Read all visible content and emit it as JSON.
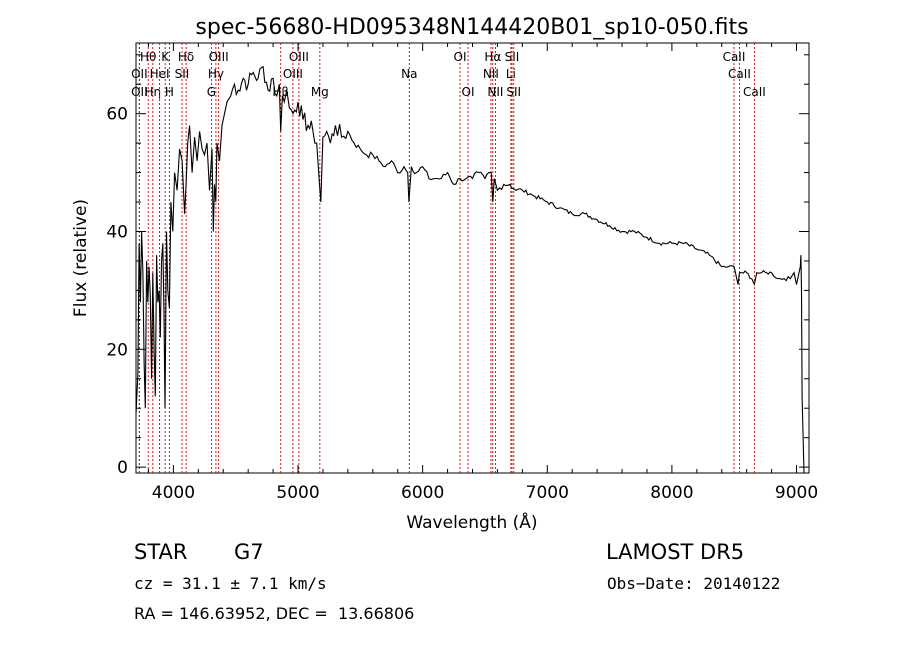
{
  "chart_data": {
    "type": "line",
    "title": "spec-56680-HD095348N144420B01_sp10-050.fits",
    "xlabel": "Wavelength (Å)",
    "ylabel": "Flux (relative)",
    "xlim": [
      3700,
      9100
    ],
    "ylim": [
      -1,
      72
    ],
    "xticks": [
      4000,
      5000,
      6000,
      7000,
      8000,
      9000
    ],
    "yticks": [
      0,
      20,
      40,
      60
    ],
    "grid": false,
    "series": [
      {
        "color": "#000000",
        "x": [
          3700,
          3715,
          3725,
          3735,
          3745,
          3755,
          3765,
          3775,
          3785,
          3795,
          3805,
          3815,
          3825,
          3835,
          3845,
          3855,
          3865,
          3875,
          3885,
          3895,
          3905,
          3915,
          3925,
          3933,
          3945,
          3955,
          3968,
          3980,
          3995,
          4010,
          4030,
          4050,
          4070,
          4090,
          4102,
          4115,
          4130,
          4150,
          4170,
          4190,
          4210,
          4230,
          4250,
          4270,
          4290,
          4310,
          4320,
          4330,
          4340,
          4350,
          4370,
          4390,
          4410,
          4430,
          4460,
          4490,
          4520,
          4560,
          4600,
          4640,
          4680,
          4720,
          4760,
          4800,
          4830,
          4850,
          4861,
          4875,
          4890,
          4910,
          4930,
          4960,
          5000,
          5040,
          5080,
          5120,
          5150,
          5172,
          5183,
          5200,
          5230,
          5260,
          5300,
          5350,
          5400,
          5450,
          5500,
          5550,
          5600,
          5650,
          5700,
          5750,
          5800,
          5850,
          5880,
          5890,
          5896,
          5910,
          5950,
          6000,
          6050,
          6100,
          6150,
          6200,
          6250,
          6300,
          6350,
          6400,
          6450,
          6500,
          6530,
          6550,
          6563,
          6575,
          6600,
          6650,
          6700,
          6750,
          6800,
          6900,
          7000,
          7100,
          7200,
          7300,
          7400,
          7500,
          7600,
          7700,
          7800,
          7900,
          8000,
          8100,
          8200,
          8300,
          8400,
          8450,
          8500,
          8530,
          8542,
          8560,
          8600,
          8640,
          8662,
          8680,
          8720,
          8760,
          8800,
          8850,
          8900,
          8950,
          8980,
          9000,
          9020,
          9030,
          9035,
          9040,
          9045,
          9060
        ],
        "y": [
          9,
          16,
          38,
          28,
          40,
          33,
          18,
          10,
          35,
          28,
          34,
          29,
          15,
          33,
          20,
          12,
          36,
          28,
          30,
          22,
          35,
          38,
          26,
          10,
          40,
          30,
          27,
          45,
          40,
          50,
          47,
          54,
          52,
          43,
          48,
          55,
          58,
          50,
          56,
          52,
          57,
          54,
          53,
          55,
          47,
          54,
          40,
          48,
          45,
          55,
          52,
          58,
          60,
          62,
          63,
          65,
          64,
          66,
          65,
          67,
          66,
          68,
          64,
          66,
          63,
          65,
          57,
          63,
          62,
          64,
          61,
          60,
          62,
          59,
          58,
          57,
          55,
          48,
          45,
          56,
          57,
          55,
          58,
          56,
          57,
          55,
          54,
          53,
          53,
          52,
          51,
          52,
          50,
          51,
          50,
          45,
          47,
          51,
          50,
          51,
          49,
          49,
          49,
          50,
          48,
          49,
          49,
          49,
          50,
          49,
          50,
          50,
          45,
          49,
          47,
          48,
          48,
          47,
          47,
          46,
          45,
          44,
          43,
          43,
          42,
          41,
          40,
          40,
          39,
          38,
          38,
          38,
          37,
          36,
          34,
          34,
          34,
          31,
          33,
          33,
          33,
          32,
          31,
          33,
          33,
          33,
          33,
          32,
          32,
          32,
          33,
          31,
          33,
          34,
          36,
          30,
          12,
          -1
        ]
      }
    ],
    "line_markers": [
      {
        "label": "OII",
        "x": 3727,
        "row": 2
      },
      {
        "label": "Hθ",
        "x": 3798,
        "row": 1
      },
      {
        "label": "OII",
        "x": 3727,
        "row": 3
      },
      {
        "label": "Hη",
        "x": 3835,
        "row": 3
      },
      {
        "label": "HeI",
        "x": 3889,
        "row": 2
      },
      {
        "label": "K",
        "x": 3934,
        "row": 1
      },
      {
        "label": "H",
        "x": 3968,
        "row": 3
      },
      {
        "label": "SII",
        "x": 4069,
        "row": 2
      },
      {
        "label": "Hδ",
        "x": 4102,
        "row": 1
      },
      {
        "label": "G",
        "x": 4305,
        "row": 3
      },
      {
        "label": "Hγ",
        "x": 4341,
        "row": 2
      },
      {
        "label": "OIII",
        "x": 4363,
        "row": 1
      },
      {
        "label": "Hβ",
        "x": 4861,
        "row": 3
      },
      {
        "label": "OIII",
        "x": 5007,
        "row": 1
      },
      {
        "label": "OIII",
        "x": 4959,
        "row": 2
      },
      {
        "label": "Mg",
        "x": 5175,
        "row": 3
      },
      {
        "label": "Na",
        "x": 5893,
        "row": 2
      },
      {
        "label": "OI",
        "x": 6300,
        "row": 1
      },
      {
        "label": "OI",
        "x": 6364,
        "row": 3
      },
      {
        "label": "Hα",
        "x": 6563,
        "row": 1
      },
      {
        "label": "NII",
        "x": 6548,
        "row": 2
      },
      {
        "label": "NII",
        "x": 6584,
        "row": 3
      },
      {
        "label": "SII",
        "x": 6717,
        "row": 1
      },
      {
        "label": "Li",
        "x": 6708,
        "row": 2
      },
      {
        "label": "SII",
        "x": 6731,
        "row": 3
      },
      {
        "label": "CaII",
        "x": 8498,
        "row": 1
      },
      {
        "label": "CaII",
        "x": 8542,
        "row": 2
      },
      {
        "label": "CaII",
        "x": 8662,
        "row": 3
      }
    ]
  },
  "info": {
    "object_type": "STAR",
    "subclass": "G7",
    "survey": "LAMOST DR5",
    "cz": "cz = 31.1 ± 7.1 km/s",
    "obs_date": "Obs−Date: 20140122",
    "coords": "RA = 146.63952, DEC =  13.66806"
  }
}
